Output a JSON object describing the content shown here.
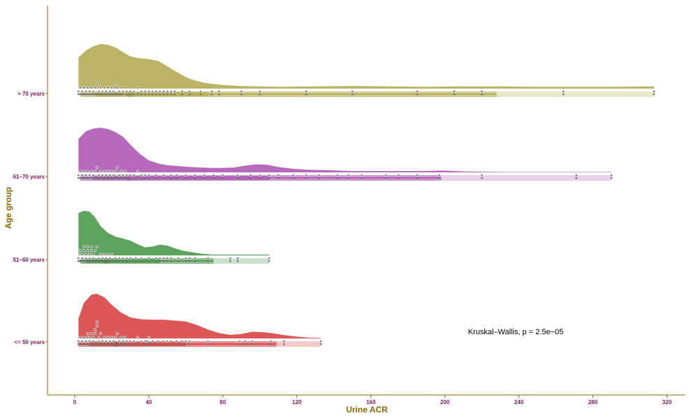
{
  "chart_data": {
    "type": "raincloud",
    "xlabel": "Urine ACR",
    "ylabel": "Age group",
    "xlim": [
      -15,
      330
    ],
    "x_ticks": [
      0,
      40,
      80,
      120,
      160,
      200,
      240,
      280,
      320
    ],
    "annotation": "Kruskal–Wallis, p = 2.5e−05",
    "grid": false,
    "legend": "none",
    "series": [
      {
        "name": "<= 50 years",
        "color": "#d94a4a",
        "density_x": [
          2,
          5,
          9,
          12,
          16,
          20,
          25,
          30,
          36,
          42,
          48,
          54,
          60,
          66,
          72,
          78,
          84,
          90,
          96,
          102,
          108,
          114,
          120,
          126,
          133
        ],
        "density_y": [
          0.45,
          0.8,
          0.98,
          1.0,
          0.92,
          0.75,
          0.58,
          0.47,
          0.43,
          0.42,
          0.42,
          0.4,
          0.38,
          0.3,
          0.2,
          0.12,
          0.08,
          0.1,
          0.15,
          0.14,
          0.11,
          0.07,
          0.04,
          0.02,
          0.01
        ],
        "points": [
          2,
          3,
          4,
          5,
          6,
          7,
          7,
          8,
          8,
          9,
          10,
          10,
          11,
          11,
          12,
          12,
          13,
          13,
          14,
          15,
          16,
          17,
          18,
          19,
          20,
          21,
          22,
          23,
          24,
          25,
          26,
          27,
          28,
          30,
          32,
          34,
          36,
          38,
          39,
          40,
          42,
          45,
          48,
          50,
          52,
          55,
          58,
          60,
          62,
          72,
          89,
          92,
          96,
          106,
          113,
          133
        ],
        "q": {
          "p05": 2,
          "q1": 8,
          "median": 22,
          "q3": 60,
          "p95": 109,
          "max": 133
        }
      },
      {
        "name": "51–60 years",
        "color": "#4f9a4f",
        "density_x": [
          2,
          5,
          8,
          11,
          14,
          18,
          22,
          26,
          30,
          34,
          38,
          42,
          46,
          50,
          54,
          58,
          62,
          68,
          74,
          80,
          86,
          92,
          98,
          105
        ],
        "density_y": [
          0.95,
          1.0,
          0.98,
          0.85,
          0.65,
          0.5,
          0.42,
          0.38,
          0.33,
          0.25,
          0.18,
          0.2,
          0.24,
          0.22,
          0.16,
          0.11,
          0.08,
          0.04,
          0.02,
          0.02,
          0.02,
          0.02,
          0.02,
          0.02
        ],
        "points": [
          2,
          3,
          3,
          4,
          4,
          5,
          5,
          6,
          6,
          7,
          7,
          8,
          8,
          9,
          9,
          10,
          10,
          11,
          12,
          13,
          14,
          15,
          16,
          17,
          18,
          19,
          20,
          22,
          24,
          26,
          28,
          30,
          33,
          36,
          40,
          44,
          46,
          48,
          50,
          52,
          56,
          60,
          62,
          65,
          72,
          84,
          88,
          105
        ],
        "q": {
          "p05": 3,
          "q1": 6,
          "median": 17,
          "q3": 46,
          "p95": 75,
          "max": 105
        }
      },
      {
        "name": "61–70 years",
        "color": "#b05cb5",
        "density_x": [
          2,
          6,
          10,
          14,
          18,
          22,
          26,
          30,
          35,
          40,
          45,
          50,
          56,
          62,
          68,
          74,
          80,
          86,
          92,
          98,
          104,
          110,
          118,
          126,
          134,
          142,
          150,
          160,
          170,
          180,
          190,
          198,
          210,
          230,
          260,
          290
        ],
        "density_y": [
          0.75,
          0.92,
          0.98,
          1.0,
          0.97,
          0.9,
          0.8,
          0.62,
          0.42,
          0.27,
          0.2,
          0.16,
          0.14,
          0.12,
          0.11,
          0.1,
          0.1,
          0.11,
          0.15,
          0.18,
          0.17,
          0.12,
          0.08,
          0.06,
          0.05,
          0.04,
          0.03,
          0.03,
          0.03,
          0.03,
          0.03,
          0.04,
          0.02,
          0.01,
          0.01,
          0.01
        ],
        "points": [
          2,
          3,
          4,
          5,
          6,
          7,
          8,
          9,
          10,
          11,
          12,
          13,
          14,
          15,
          16,
          17,
          18,
          19,
          20,
          21,
          22,
          23,
          24,
          25,
          26,
          27,
          28,
          30,
          32,
          34,
          36,
          38,
          40,
          44,
          48,
          52,
          55,
          60,
          65,
          70,
          75,
          80,
          88,
          95,
          100,
          105,
          110,
          118,
          125,
          132,
          142,
          148,
          155,
          168,
          175,
          185,
          197,
          220,
          271,
          290
        ],
        "q": {
          "p05": 3,
          "q1": 10,
          "median": 29,
          "q3": 105,
          "p95": 198,
          "max": 290
        }
      },
      {
        "name": "> 70 years",
        "color": "#b5ad58",
        "density_x": [
          2,
          6,
          10,
          14,
          18,
          22,
          26,
          30,
          35,
          40,
          45,
          50,
          56,
          62,
          70,
          80,
          90,
          100,
          110,
          130,
          150,
          170,
          190,
          210,
          230,
          250,
          270,
          290,
          313
        ],
        "density_y": [
          0.7,
          0.85,
          0.95,
          1.0,
          0.98,
          0.92,
          0.82,
          0.72,
          0.68,
          0.66,
          0.62,
          0.5,
          0.35,
          0.22,
          0.13,
          0.08,
          0.06,
          0.05,
          0.04,
          0.05,
          0.06,
          0.05,
          0.04,
          0.05,
          0.05,
          0.04,
          0.04,
          0.04,
          0.05
        ],
        "points": [
          2,
          3,
          4,
          5,
          6,
          7,
          8,
          9,
          10,
          11,
          12,
          13,
          14,
          15,
          16,
          17,
          18,
          19,
          20,
          21,
          22,
          23,
          24,
          25,
          26,
          28,
          30,
          32,
          34,
          36,
          38,
          40,
          42,
          44,
          46,
          48,
          50,
          52,
          54,
          58,
          62,
          68,
          74,
          78,
          90,
          100,
          125,
          150,
          185,
          205,
          220,
          264,
          313
        ],
        "q": {
          "p05": 3,
          "q1": 11,
          "median": 30,
          "q3": 72,
          "p95": 228,
          "max": 313
        }
      }
    ]
  }
}
